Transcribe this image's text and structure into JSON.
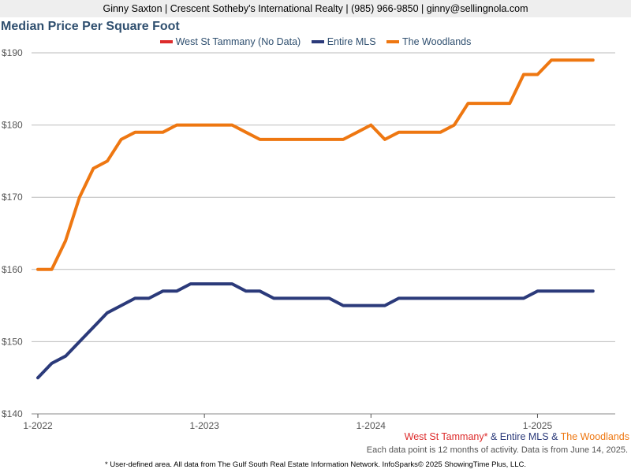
{
  "header": {
    "text": "Ginny Saxton | Crescent Sotheby's International Realty | (985) 966-9850 | ginny@sellingnola.com"
  },
  "chart_data": {
    "type": "line",
    "title": "Median Price Per Square Foot",
    "xlabel": "",
    "ylabel": "",
    "ylim": [
      140,
      190
    ],
    "y_ticks": [
      140,
      150,
      160,
      170,
      180,
      190
    ],
    "y_tick_labels": [
      "$140",
      "$150",
      "$160",
      "$170",
      "$180",
      "$190"
    ],
    "x_tick_labels": [
      "1-2022",
      "1-2023",
      "1-2024",
      "1-2025"
    ],
    "x_tick_positions": [
      0,
      12,
      24,
      36
    ],
    "x_range": [
      0,
      41
    ],
    "grid": true,
    "legend_position": "top",
    "series": [
      {
        "name": "West St Tammany (No Data)",
        "color": "#dd2c2c",
        "values": []
      },
      {
        "name": "Entire MLS",
        "color": "#2b3a7a",
        "values": [
          145,
          147,
          148,
          150,
          152,
          154,
          155,
          156,
          156,
          157,
          157,
          158,
          158,
          158,
          158,
          157,
          157,
          156,
          156,
          156,
          156,
          156,
          155,
          155,
          155,
          155,
          156,
          156,
          156,
          156,
          156,
          156,
          156,
          156,
          156,
          156,
          157,
          157,
          157,
          157,
          157
        ]
      },
      {
        "name": "The Woodlands",
        "color": "#ee7711",
        "values": [
          160,
          160,
          164,
          170,
          174,
          175,
          178,
          179,
          179,
          179,
          180,
          180,
          180,
          180,
          180,
          179,
          178,
          178,
          178,
          178,
          178,
          178,
          178,
          179,
          180,
          178,
          179,
          179,
          179,
          179,
          180,
          183,
          183,
          183,
          183,
          187,
          187,
          189,
          189,
          189,
          189
        ]
      }
    ]
  },
  "footer": {
    "legend_parts": [
      {
        "text": "West St Tammany*",
        "color": "#dd2c2c"
      },
      {
        "text": " & ",
        "color": "#2b3a7a"
      },
      {
        "text": "Entire MLS",
        "color": "#2b3a7a"
      },
      {
        "text": " & ",
        "color": "#2b3a7a"
      },
      {
        "text": "The Woodlands",
        "color": "#ee7711"
      }
    ],
    "note": "Each data point is 12 months of activity. Data is from June 14, 2025.",
    "footnote": "* User-defined area. All data from The Gulf South Real Estate Information Network. InfoSparks© 2025 ShowingTime Plus, LLC."
  }
}
